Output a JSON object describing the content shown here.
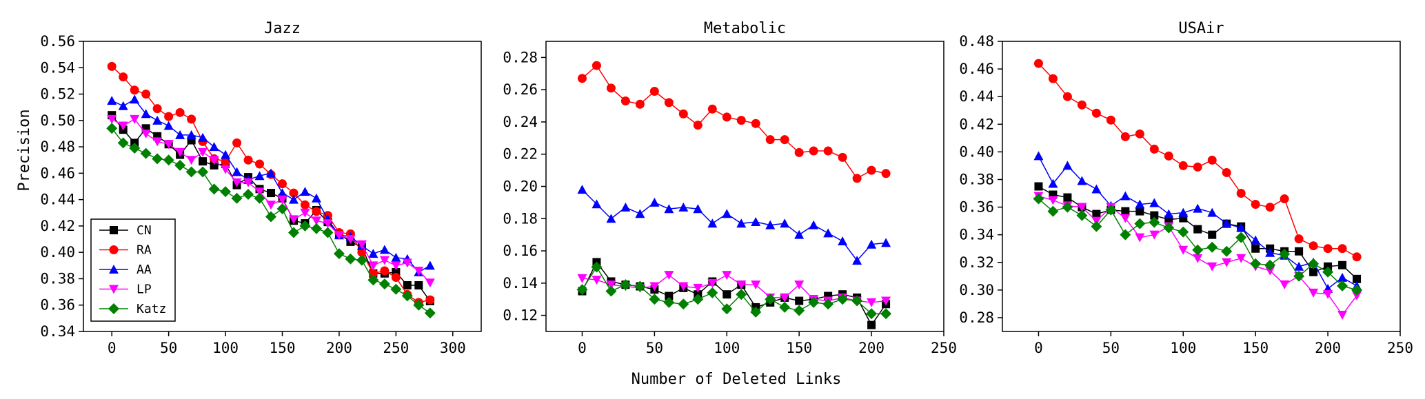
{
  "figure": {
    "xlabel": "Number of Deleted Links",
    "ylabel": "Precision"
  },
  "series_style": [
    {
      "name": "CN",
      "color": "#000000",
      "marker": "square"
    },
    {
      "name": "RA",
      "color": "#ff0000",
      "marker": "circle"
    },
    {
      "name": "AA",
      "color": "#0000ff",
      "marker": "triangle-up"
    },
    {
      "name": "LP",
      "color": "#ff00ff",
      "marker": "triangle-down"
    },
    {
      "name": "Katz",
      "color": "#008000",
      "marker": "diamond"
    }
  ],
  "legend": {
    "entries": [
      "CN",
      "RA",
      "AA",
      "LP",
      "Katz"
    ],
    "placement": "lower-left of first panel"
  },
  "chart_data": [
    {
      "type": "line",
      "title": "Jazz",
      "xlabel": "Number of Deleted Links",
      "ylabel": "Precision",
      "xlim": [
        -25,
        325
      ],
      "ylim": [
        0.34,
        0.56
      ],
      "xticks": [
        0,
        50,
        100,
        150,
        200,
        250,
        300
      ],
      "yticks": [
        0.34,
        0.36,
        0.38,
        0.4,
        0.42,
        0.44,
        0.46,
        0.48,
        0.5,
        0.52,
        0.54,
        0.56
      ],
      "ytick_labels": [
        "0.34",
        "0.36",
        "0.38",
        "0.40",
        "0.42",
        "0.44",
        "0.46",
        "0.48",
        "0.50",
        "0.52",
        "0.54",
        "0.56"
      ],
      "x": [
        0,
        10,
        20,
        30,
        40,
        50,
        60,
        70,
        80,
        90,
        100,
        110,
        120,
        130,
        140,
        150,
        160,
        170,
        180,
        190,
        200,
        210,
        220,
        230,
        240,
        250,
        260,
        270,
        280
      ],
      "series": [
        {
          "name": "CN",
          "values": [
            0.504,
            0.493,
            0.483,
            0.494,
            0.488,
            0.482,
            0.474,
            0.485,
            0.469,
            0.466,
            0.467,
            0.451,
            0.457,
            0.448,
            0.445,
            0.441,
            0.424,
            0.422,
            0.432,
            0.423,
            0.414,
            0.408,
            0.404,
            0.384,
            0.384,
            0.385,
            0.375,
            0.375,
            0.363
          ]
        },
        {
          "name": "RA",
          "values": [
            0.541,
            0.533,
            0.523,
            0.52,
            0.509,
            0.503,
            0.506,
            0.501,
            0.484,
            0.471,
            0.469,
            0.483,
            0.47,
            0.467,
            0.459,
            0.452,
            0.445,
            0.436,
            0.431,
            0.428,
            0.415,
            0.414,
            0.4,
            0.384,
            0.386,
            0.381,
            0.368,
            0.362,
            0.364
          ]
        },
        {
          "name": "AA",
          "values": [
            0.515,
            0.511,
            0.516,
            0.505,
            0.5,
            0.496,
            0.489,
            0.489,
            0.487,
            0.48,
            0.474,
            0.461,
            0.455,
            0.458,
            0.46,
            0.445,
            0.44,
            0.446,
            0.441,
            0.425,
            0.413,
            0.412,
            0.405,
            0.399,
            0.402,
            0.396,
            0.395,
            0.385,
            0.39
          ]
        },
        {
          "name": "LP",
          "values": [
            0.501,
            0.496,
            0.501,
            0.49,
            0.484,
            0.482,
            0.476,
            0.47,
            0.476,
            0.47,
            0.463,
            0.453,
            0.453,
            0.446,
            0.436,
            0.44,
            0.425,
            0.43,
            0.424,
            0.422,
            0.413,
            0.41,
            0.406,
            0.39,
            0.394,
            0.39,
            0.392,
            0.386,
            0.377
          ]
        },
        {
          "name": "Katz",
          "values": [
            0.494,
            0.483,
            0.479,
            0.475,
            0.471,
            0.47,
            0.466,
            0.461,
            0.461,
            0.448,
            0.446,
            0.441,
            0.444,
            0.441,
            0.427,
            0.433,
            0.415,
            0.42,
            0.418,
            0.415,
            0.399,
            0.395,
            0.394,
            0.379,
            0.376,
            0.372,
            0.367,
            0.36,
            0.354
          ]
        }
      ]
    },
    {
      "type": "line",
      "title": "Metabolic",
      "xlabel": "Number of Deleted Links",
      "ylabel": "Precision",
      "xlim": [
        -25,
        250
      ],
      "ylim": [
        0.11,
        0.29
      ],
      "xticks": [
        0,
        50,
        100,
        150,
        200,
        250
      ],
      "yticks": [
        0.12,
        0.14,
        0.16,
        0.18,
        0.2,
        0.22,
        0.24,
        0.26,
        0.28
      ],
      "ytick_labels": [
        "0.12",
        "0.14",
        "0.16",
        "0.18",
        "0.20",
        "0.22",
        "0.24",
        "0.26",
        "0.28"
      ],
      "x": [
        0,
        10,
        20,
        30,
        40,
        50,
        60,
        70,
        80,
        90,
        100,
        110,
        120,
        130,
        140,
        150,
        160,
        170,
        180,
        190,
        200,
        210
      ],
      "series": [
        {
          "name": "CN",
          "values": [
            0.135,
            0.153,
            0.141,
            0.139,
            0.138,
            0.136,
            0.132,
            0.137,
            0.133,
            0.141,
            0.133,
            0.139,
            0.125,
            0.128,
            0.131,
            0.129,
            0.13,
            0.132,
            0.133,
            0.131,
            0.114,
            0.127
          ]
        },
        {
          "name": "RA",
          "values": [
            0.267,
            0.275,
            0.261,
            0.253,
            0.251,
            0.259,
            0.252,
            0.245,
            0.238,
            0.248,
            0.243,
            0.241,
            0.239,
            0.229,
            0.229,
            0.221,
            0.222,
            0.222,
            0.218,
            0.205,
            0.21,
            0.208
          ]
        },
        {
          "name": "AA",
          "values": [
            0.198,
            0.189,
            0.18,
            0.187,
            0.183,
            0.19,
            0.186,
            0.187,
            0.186,
            0.177,
            0.183,
            0.177,
            0.178,
            0.176,
            0.177,
            0.17,
            0.176,
            0.171,
            0.166,
            0.154,
            0.164,
            0.165
          ]
        },
        {
          "name": "LP",
          "values": [
            0.143,
            0.142,
            0.139,
            0.138,
            0.137,
            0.138,
            0.145,
            0.138,
            0.137,
            0.14,
            0.145,
            0.139,
            0.139,
            0.131,
            0.131,
            0.139,
            0.13,
            0.129,
            0.131,
            0.129,
            0.128,
            0.129
          ]
        },
        {
          "name": "Katz",
          "values": [
            0.136,
            0.15,
            0.135,
            0.139,
            0.138,
            0.13,
            0.128,
            0.127,
            0.13,
            0.134,
            0.124,
            0.133,
            0.122,
            0.13,
            0.125,
            0.123,
            0.128,
            0.127,
            0.13,
            0.129,
            0.121,
            0.121
          ]
        }
      ]
    },
    {
      "type": "line",
      "title": "USAir",
      "xlabel": "Number of Deleted Links",
      "ylabel": "Precision",
      "xlim": [
        -25,
        250
      ],
      "ylim": [
        0.27,
        0.48
      ],
      "xticks": [
        0,
        50,
        100,
        150,
        200,
        250
      ],
      "yticks": [
        0.28,
        0.3,
        0.32,
        0.34,
        0.36,
        0.38,
        0.4,
        0.42,
        0.44,
        0.46,
        0.48
      ],
      "ytick_labels": [
        "0.28",
        "0.30",
        "0.32",
        "0.34",
        "0.36",
        "0.38",
        "0.40",
        "0.42",
        "0.44",
        "0.46",
        "0.48"
      ],
      "x": [
        0,
        10,
        20,
        30,
        40,
        50,
        60,
        70,
        80,
        90,
        100,
        110,
        120,
        130,
        140,
        150,
        160,
        170,
        180,
        190,
        200,
        210,
        220
      ],
      "series": [
        {
          "name": "CN",
          "values": [
            0.375,
            0.369,
            0.367,
            0.36,
            0.355,
            0.358,
            0.357,
            0.357,
            0.354,
            0.351,
            0.352,
            0.344,
            0.34,
            0.348,
            0.346,
            0.33,
            0.33,
            0.328,
            0.328,
            0.313,
            0.317,
            0.318,
            0.308
          ]
        },
        {
          "name": "RA",
          "values": [
            0.464,
            0.453,
            0.44,
            0.434,
            0.428,
            0.423,
            0.411,
            0.413,
            0.402,
            0.397,
            0.39,
            0.389,
            0.394,
            0.385,
            0.37,
            0.362,
            0.36,
            0.366,
            0.337,
            0.332,
            0.33,
            0.33,
            0.324
          ]
        },
        {
          "name": "AA",
          "values": [
            0.397,
            0.377,
            0.39,
            0.379,
            0.373,
            0.361,
            0.368,
            0.362,
            0.363,
            0.355,
            0.356,
            0.359,
            0.356,
            0.348,
            0.345,
            0.336,
            0.327,
            0.325,
            0.317,
            0.32,
            0.301,
            0.309,
            0.303
          ]
        },
        {
          "name": "LP",
          "values": [
            0.368,
            0.365,
            0.361,
            0.36,
            0.35,
            0.36,
            0.352,
            0.338,
            0.34,
            0.346,
            0.329,
            0.323,
            0.317,
            0.32,
            0.323,
            0.317,
            0.314,
            0.304,
            0.31,
            0.298,
            0.297,
            0.282,
            0.296
          ]
        },
        {
          "name": "Katz",
          "values": [
            0.366,
            0.357,
            0.36,
            0.354,
            0.346,
            0.358,
            0.34,
            0.348,
            0.349,
            0.345,
            0.342,
            0.329,
            0.331,
            0.328,
            0.338,
            0.319,
            0.318,
            0.326,
            0.31,
            0.319,
            0.313,
            0.303,
            0.3
          ]
        }
      ]
    }
  ]
}
